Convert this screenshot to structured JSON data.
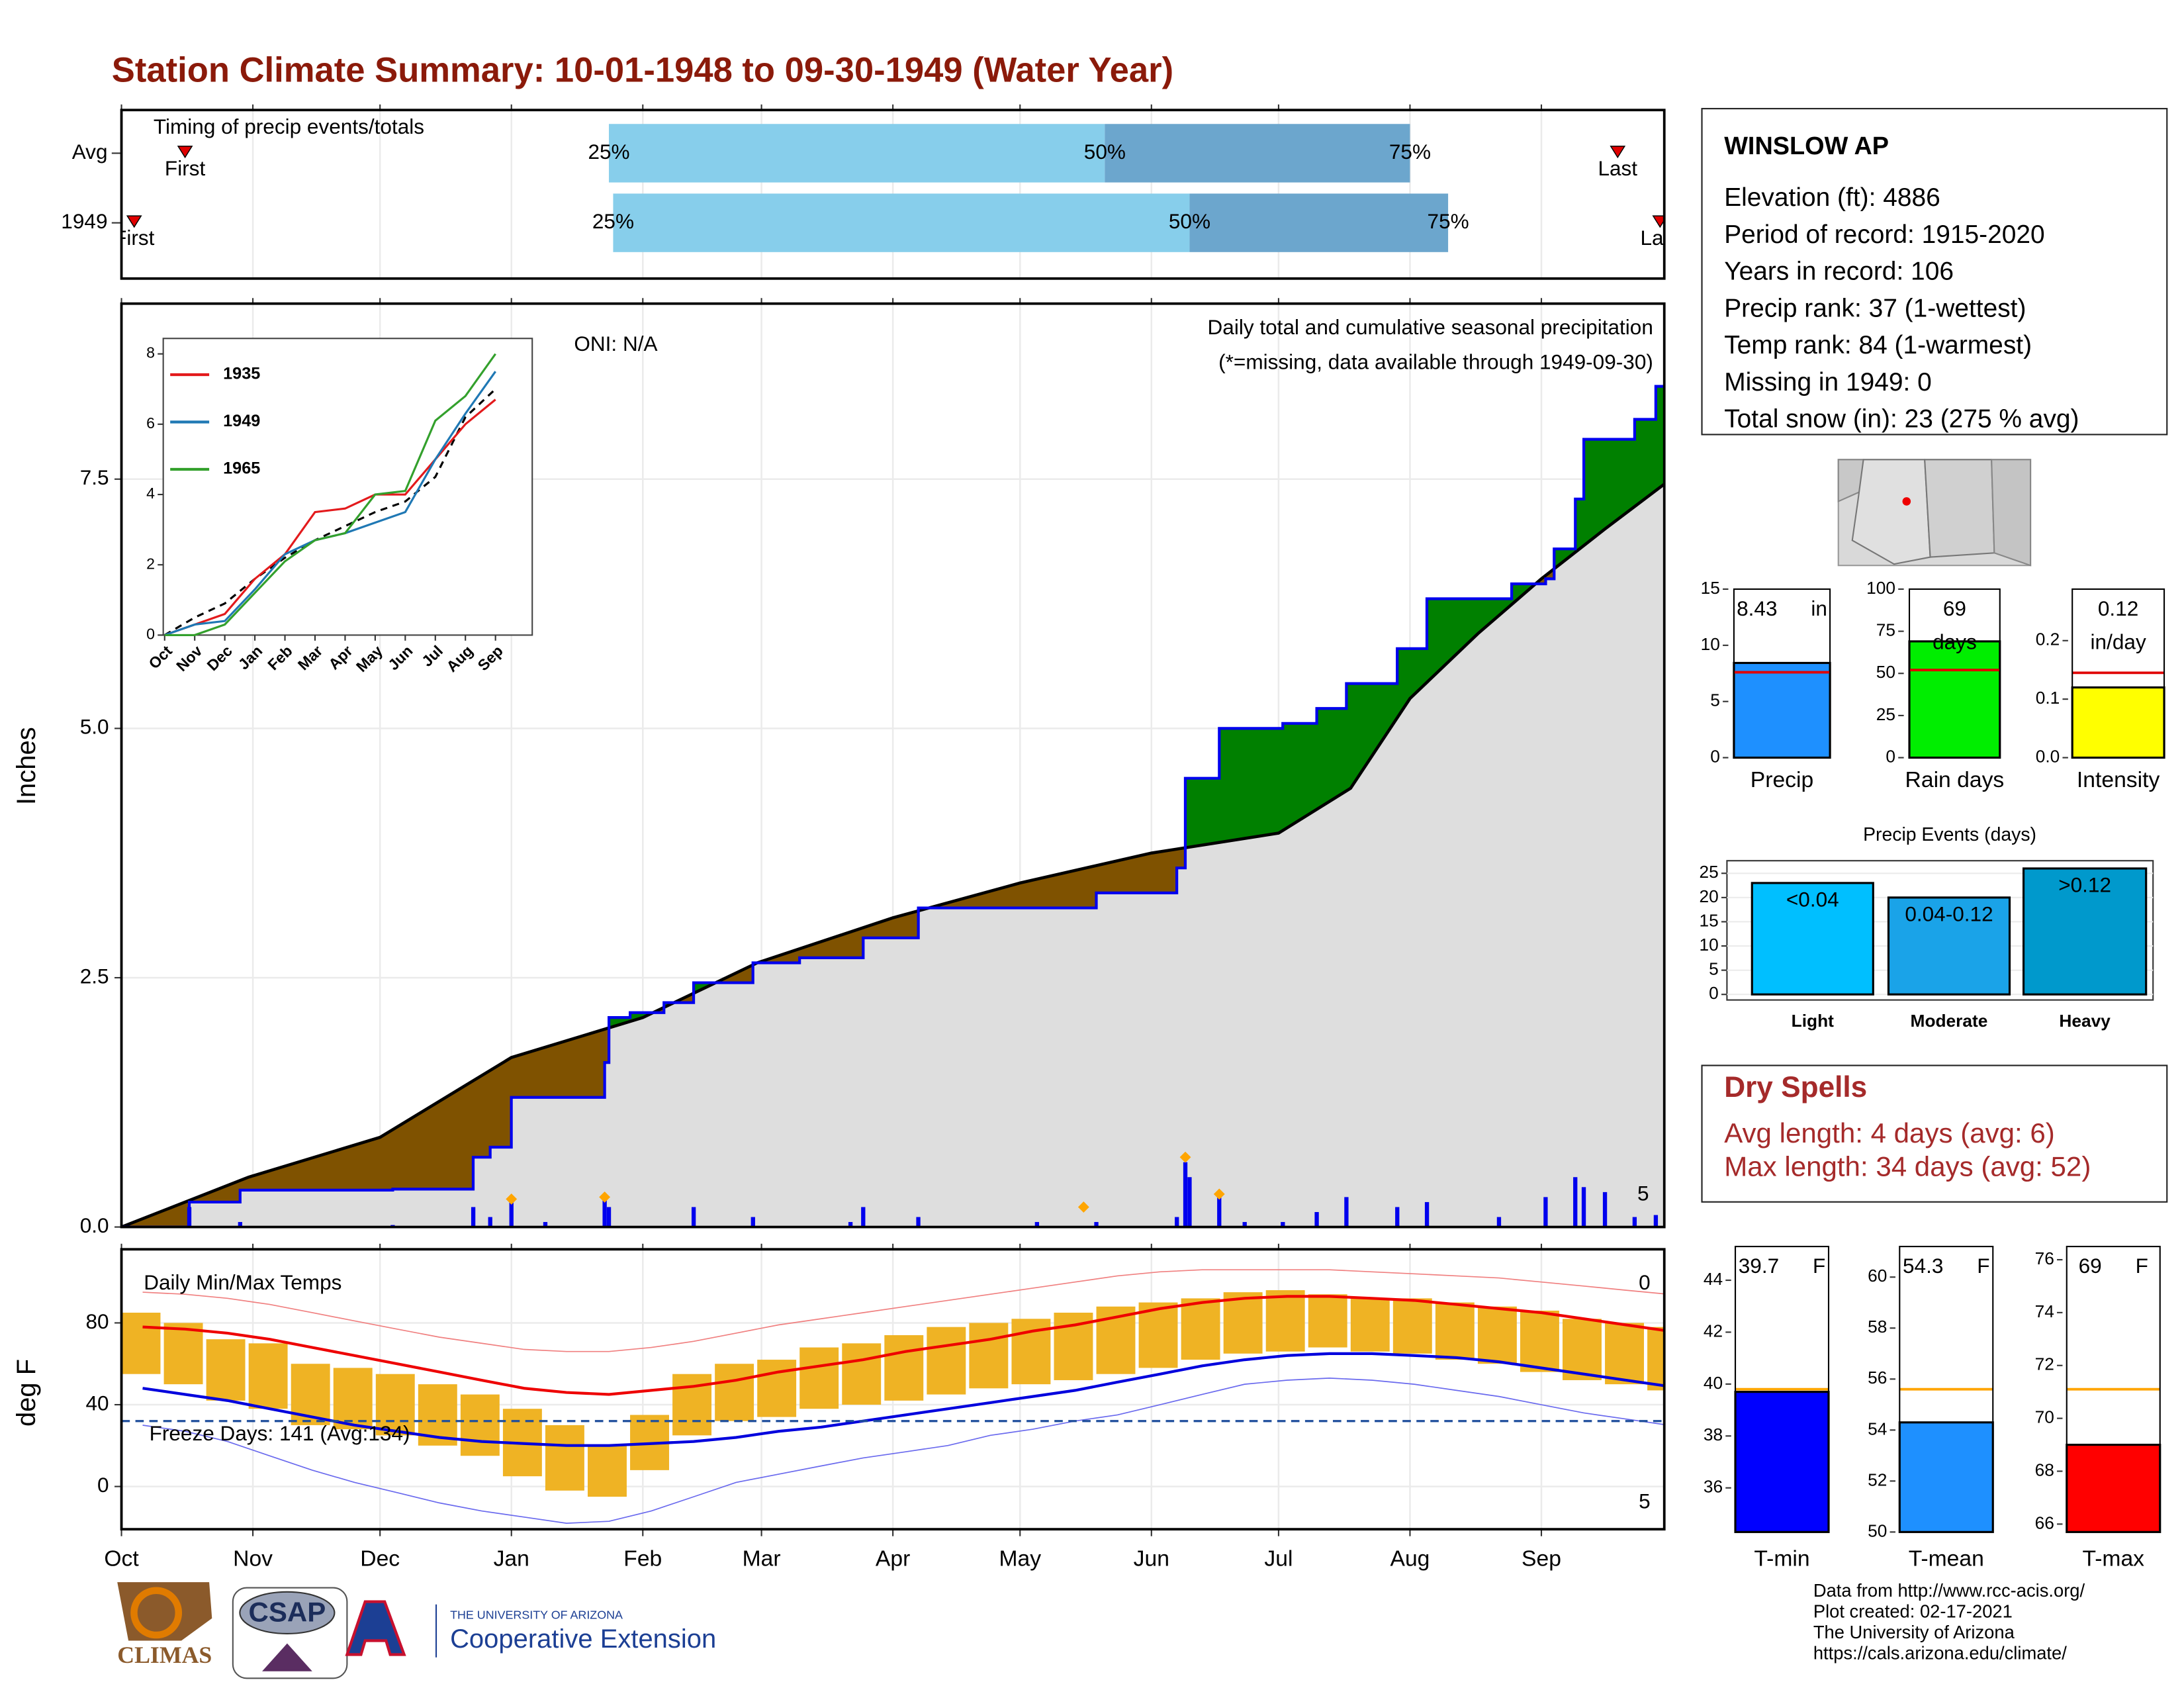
{
  "title": "Station Climate Summary: 10-01-1948 to 09-30-1949 (Water Year)",
  "chart_data": [
    {
      "type": "timeline",
      "title": "Timing of precip events/totals",
      "rows": [
        {
          "name": "Avg",
          "first": 15,
          "p25": 115,
          "p50": 232,
          "p75": 304,
          "last": 353
        },
        {
          "name": "1949",
          "first": 3,
          "p25": 116,
          "p50": 252,
          "p75": 313,
          "last": 363
        }
      ],
      "labels": {
        "first": "First",
        "last": "Last",
        "p25": "25%",
        "p50": "50%",
        "p75": "75%"
      },
      "colors": {
        "lower": "#87ceeb",
        "upper": "#6ca6cd",
        "marker": "#e00000"
      }
    },
    {
      "type": "area",
      "ylabel": "Inches",
      "annotation": "ONI: N/A",
      "subtitle": "Daily total and cumulative seasonal precipitation",
      "note": "(*=missing, data available through 1949-09-30)",
      "snow_days_count": 5,
      "ylim": [
        0,
        9.26
      ],
      "yticks": [
        {
          "value": 0,
          "label": "0.0"
        },
        2.5,
        {
          "value": 5,
          "label": "5.0"
        },
        7.5
      ],
      "average": {
        "x": [
          0,
          30,
          61,
          92,
          123,
          150,
          182,
          212,
          243,
          273,
          290,
          304,
          320,
          335,
          350,
          364
        ],
        "values": [
          0,
          0.5,
          0.9,
          1.7,
          2.1,
          2.65,
          3.1,
          3.45,
          3.75,
          3.95,
          4.4,
          5.3,
          5.95,
          6.5,
          7.0,
          7.45
        ]
      },
      "observed": {
        "x": [
          0,
          16,
          28,
          64,
          83,
          87,
          92,
          114,
          115,
          120,
          128,
          135,
          149,
          160,
          175,
          188,
          230,
          249,
          251,
          259,
          274,
          282,
          289,
          301,
          308,
          328,
          336,
          338,
          343,
          345,
          357,
          362
        ],
        "values": [
          0,
          0.25,
          0.37,
          0.38,
          0.7,
          0.8,
          1.3,
          1.65,
          2.1,
          2.15,
          2.25,
          2.45,
          2.65,
          2.7,
          2.9,
          3.2,
          3.35,
          3.6,
          4.5,
          5.0,
          5.05,
          5.2,
          5.45,
          5.8,
          6.3,
          6.45,
          6.5,
          6.8,
          7.3,
          7.9,
          8.1,
          8.43
        ]
      },
      "daily": {
        "x": [
          16,
          28,
          64,
          83,
          87,
          92,
          100,
          114,
          115,
          135,
          149,
          172,
          175,
          188,
          216,
          230,
          249,
          251,
          252,
          259,
          265,
          274,
          282,
          289,
          301,
          308,
          325,
          336,
          343,
          345,
          350,
          357,
          362
        ],
        "values": [
          0.2,
          0.05,
          0.02,
          0.2,
          0.1,
          0.25,
          0.05,
          0.3,
          0.2,
          0.2,
          0.1,
          0.05,
          0.2,
          0.1,
          0.05,
          0.05,
          0.1,
          0.65,
          0.5,
          0.3,
          0.05,
          0.05,
          0.15,
          0.3,
          0.2,
          0.25,
          0.1,
          0.3,
          0.5,
          0.4,
          0.35,
          0.1,
          0.12
        ]
      },
      "snow": {
        "x": [
          92,
          114,
          227,
          251,
          259
        ],
        "values": [
          0.28,
          0.3,
          0.2,
          0.7,
          0.33
        ]
      },
      "colors": {
        "average_fill": "#dedede",
        "deficit": "#7f5200",
        "surplus": "#008000",
        "average": "#000000",
        "observed": "#0000ee",
        "daily": "#0000ee",
        "snow": "#ffa500"
      }
    },
    {
      "type": "line",
      "categories": [
        "Oct",
        "Nov",
        "Dec",
        "Jan",
        "Feb",
        "Mar",
        "Apr",
        "May",
        "Jun",
        "Jul",
        "Aug",
        "Sep"
      ],
      "ylim": [
        0,
        8.44
      ],
      "yticks": [
        0,
        2,
        4,
        6,
        8
      ],
      "series": [
        {
          "name": "1935",
          "color": "#e31a1c",
          "values": [
            0,
            0.3,
            0.6,
            1.6,
            2.3,
            3.5,
            3.6,
            4.0,
            4.0,
            5.0,
            6.0,
            6.7
          ]
        },
        {
          "name": "1949",
          "color": "#1f78b4",
          "values": [
            0,
            0.3,
            0.4,
            1.3,
            2.3,
            2.7,
            2.9,
            3.2,
            3.5,
            5.0,
            6.3,
            7.5
          ]
        },
        {
          "name": "1965",
          "color": "#33a02c",
          "values": [
            0,
            0,
            0.3,
            1.2,
            2.1,
            2.7,
            2.9,
            4.0,
            4.1,
            6.1,
            6.8,
            8.0
          ]
        }
      ],
      "average": [
        0,
        0.5,
        0.9,
        1.6,
        2.2,
        2.7,
        3.1,
        3.5,
        3.8,
        4.5,
        6.2,
        7.0
      ]
    },
    {
      "type": "range",
      "title": "Daily Min/Max Temps",
      "ylabel": "deg F",
      "xlim": [
        0,
        364
      ],
      "xticks": [
        {
          "value": 0,
          "label": "Oct"
        },
        {
          "value": 31,
          "label": "Nov"
        },
        {
          "value": 61,
          "label": "Dec"
        },
        {
          "value": 92,
          "label": "Jan"
        },
        {
          "value": 123,
          "label": "Feb"
        },
        {
          "value": 151,
          "label": "Mar"
        },
        {
          "value": 182,
          "label": "Apr"
        },
        {
          "value": 212,
          "label": "May"
        },
        {
          "value": 243,
          "label": "Jun"
        },
        {
          "value": 273,
          "label": "Jul"
        },
        {
          "value": 304,
          "label": "Aug"
        },
        {
          "value": 335,
          "label": "Sep"
        }
      ],
      "ylim": [
        -20.9,
        116
      ],
      "yticks": [
        0,
        40,
        80
      ],
      "x": [
        0,
        10,
        20,
        30,
        40,
        50,
        60,
        70,
        80,
        90,
        100,
        110,
        120,
        130,
        140,
        150,
        160,
        170,
        180,
        190,
        200,
        210,
        220,
        230,
        240,
        250,
        260,
        270,
        280,
        290,
        300,
        310,
        320,
        330,
        340,
        350,
        360
      ],
      "observed_max": [
        85,
        80,
        72,
        70,
        60,
        58,
        55,
        50,
        45,
        38,
        30,
        20,
        35,
        55,
        60,
        62,
        68,
        70,
        74,
        78,
        80,
        82,
        85,
        88,
        90,
        92,
        95,
        96,
        94,
        92,
        92,
        90,
        88,
        86,
        82,
        80,
        78
      ],
      "observed_min": [
        55,
        50,
        42,
        38,
        30,
        28,
        25,
        20,
        15,
        5,
        -2,
        -5,
        8,
        25,
        32,
        34,
        38,
        40,
        42,
        45,
        48,
        50,
        52,
        55,
        58,
        62,
        65,
        66,
        68,
        66,
        65,
        62,
        60,
        56,
        52,
        50,
        47
      ],
      "normal_max": [
        78,
        77,
        75,
        72,
        68,
        64,
        60,
        56,
        52,
        48,
        46,
        45,
        47,
        49,
        52,
        56,
        59,
        62,
        66,
        69,
        72,
        76,
        79,
        83,
        87,
        90,
        92,
        93,
        93,
        92,
        91,
        89,
        87,
        85,
        82,
        79,
        76
      ],
      "normal_min": [
        48,
        45,
        42,
        38,
        34,
        30,
        27,
        24,
        22,
        21,
        20,
        20,
        21,
        22,
        24,
        27,
        29,
        32,
        35,
        38,
        41,
        44,
        47,
        51,
        55,
        59,
        62,
        64,
        65,
        65,
        64,
        63,
        61,
        58,
        55,
        52,
        49
      ],
      "record_high": [
        95,
        94,
        92,
        89,
        85,
        81,
        77,
        73,
        70,
        67,
        66,
        66,
        68,
        71,
        75,
        79,
        82,
        85,
        88,
        91,
        94,
        97,
        100,
        103,
        105,
        106,
        106,
        106,
        106,
        105,
        104,
        103,
        102,
        100,
        98,
        96,
        94
      ],
      "record_low": [
        30,
        27,
        22,
        15,
        8,
        2,
        -3,
        -8,
        -12,
        -15,
        -18,
        -17,
        -12,
        -5,
        2,
        6,
        10,
        14,
        17,
        20,
        25,
        28,
        32,
        35,
        40,
        45,
        50,
        52,
        53,
        52,
        50,
        47,
        44,
        40,
        36,
        33,
        30
      ],
      "freeze_threshold": 32,
      "freeze_label": "Freeze Days: 141 (Avg:134)",
      "record_high_count": 0,
      "record_low_count": 5,
      "colors": {
        "observed": "#efb324",
        "normal_max": "#ee0000",
        "normal_min": "#0000dd",
        "record_high": "#f08080",
        "record_low": "#6a6aee",
        "freeze": "#1f4e9c"
      }
    },
    {
      "type": "bar",
      "categories": [
        "Precip"
      ],
      "values": [
        8.43
      ],
      "value_labels": [
        "8.43 in"
      ],
      "average": 7.6,
      "ylim": [
        0,
        15
      ],
      "yticks": [
        0,
        5,
        10,
        15
      ],
      "color": "#1e90ff",
      "average_color": "#e00000"
    },
    {
      "type": "bar",
      "categories": [
        "Rain days"
      ],
      "values": [
        69
      ],
      "value_labels": [
        "69 days"
      ],
      "average": 52,
      "ylim": [
        0,
        100
      ],
      "yticks": [
        0,
        25,
        50,
        75,
        100
      ],
      "color": "#00ee00",
      "average_color": "#e00000"
    },
    {
      "type": "bar",
      "categories": [
        "Intensity"
      ],
      "values": [
        0.12
      ],
      "value_labels": [
        "0.12 in/day"
      ],
      "average": 0.145,
      "ylim": [
        0,
        0.288
      ],
      "yticks": [
        {
          "value": 0,
          "label": "0.0"
        },
        0.1,
        0.2
      ],
      "color": "#ffff00",
      "average_color": "#e00000"
    },
    {
      "type": "events",
      "title": "Precip Events (days)",
      "categories": [
        "Light",
        "Moderate",
        "Heavy"
      ],
      "values": [
        23,
        20,
        26
      ],
      "value_labels": [
        "<0.04",
        "0.04-0.12",
        ">0.12"
      ],
      "ylim": [
        0,
        27.6
      ],
      "yticks": [
        0,
        5,
        10,
        15,
        20,
        25
      ],
      "colors": [
        "#00bfff",
        "#1aa3e8",
        "#0099cc"
      ]
    },
    {
      "type": "bar",
      "categories": [
        "T-min"
      ],
      "values": [
        39.7
      ],
      "value_labels": [
        "39.7 F"
      ],
      "average": 39.8,
      "ylim": [
        34.3,
        45.3
      ],
      "yticks": [
        36,
        38,
        40,
        42,
        44
      ],
      "color": "#0000ff",
      "average_color": "#ffa500"
    },
    {
      "type": "bar",
      "categories": [
        "T-mean"
      ],
      "values": [
        54.3
      ],
      "value_labels": [
        "54.3 F"
      ],
      "average": 55.6,
      "ylim": [
        50,
        61.2
      ],
      "yticks": [
        50,
        52,
        54,
        56,
        58,
        60
      ],
      "color": "#1e90ff",
      "average_color": "#ffa500"
    },
    {
      "type": "bar",
      "categories": [
        "T-max"
      ],
      "values": [
        69
      ],
      "value_labels": [
        "69 F"
      ],
      "average": 71.1,
      "ylim": [
        65.7,
        76.5
      ],
      "yticks": [
        66,
        68,
        70,
        72,
        74,
        76
      ],
      "color": "#ff0000",
      "average_color": "#ffa500"
    }
  ],
  "station": {
    "name": "WINSLOW AP",
    "lines": [
      "Elevation (ft): 4886",
      "Period of record: 1915-2020",
      "Years in record: 106",
      "Precip rank: 37 (1-wettest)",
      "Temp rank: 84 (1-warmest)",
      "Missing in 1949: 0",
      "Total snow (in): 23 (275 % avg)"
    ]
  },
  "dry_spells": {
    "title": "Dry Spells",
    "lines": [
      "Avg length: 4 days (avg: 6)",
      "Max length: 34 days (avg: 52)"
    ]
  },
  "footer": [
    "Data from http://www.rcc-acis.org/",
    "Plot created: 02-17-2021",
    "The University of Arizona",
    "https://cals.arizona.edu/climate/"
  ],
  "logos": {
    "climas": "CLIMAS",
    "csap": "CSAP",
    "university": "THE UNIVERSITY OF ARIZONA",
    "extension": "Cooperative Extension"
  }
}
